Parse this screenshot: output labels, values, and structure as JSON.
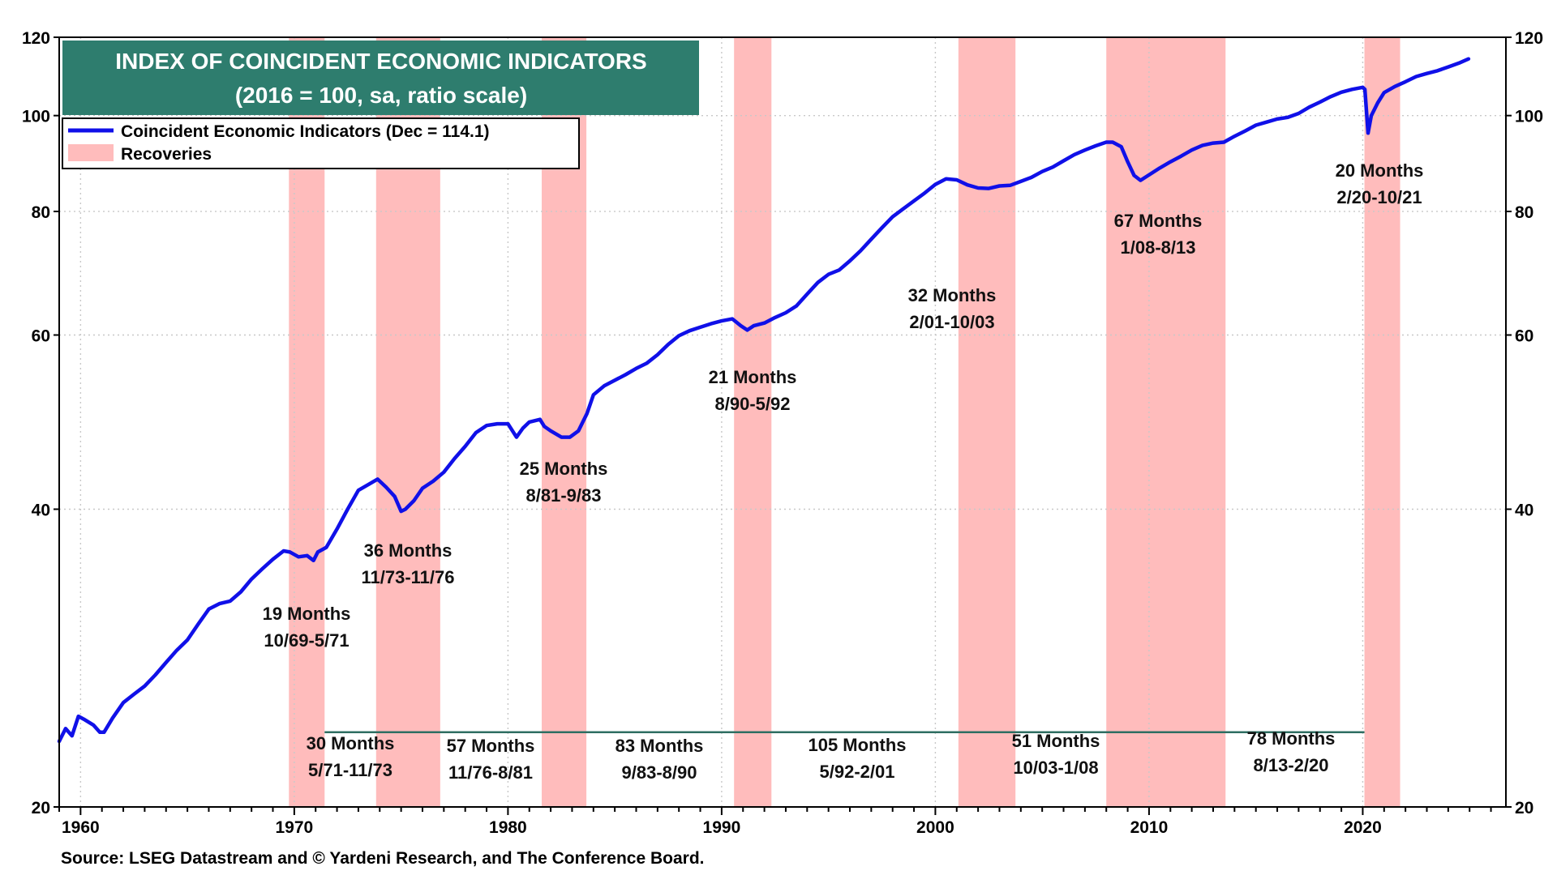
{
  "chart_data": {
    "type": "line",
    "title": "INDEX OF COINCIDENT ECONOMIC INDICATORS",
    "subtitle": "(2016 = 100, sa, ratio scale)",
    "y_scale": "log",
    "ylim": [
      20,
      120
    ],
    "xlim": [
      1959,
      2026.7
    ],
    "y_ticks": [
      20,
      40,
      60,
      80,
      100,
      120
    ],
    "x_ticks": [
      1960,
      1970,
      1980,
      1990,
      2000,
      2010,
      2020
    ],
    "legend": {
      "placement": "top-left",
      "line_label": "Coincident Economic Indicators (Dec = 114.1)",
      "band_label": "Recoveries"
    },
    "colors": {
      "line": "#1010e8",
      "band": "#ffbcbc",
      "title_bg": "#2e7d6e",
      "expansion_line": "#2e6e62",
      "grid": "#c8c8c8"
    },
    "series": [
      {
        "name": "Coincident Economic Indicators",
        "x": [
          1959.0,
          1959.3,
          1959.6,
          1959.9,
          1960.2,
          1960.6,
          1960.9,
          1961.1,
          1961.5,
          1962.0,
          1962.5,
          1963.0,
          1963.5,
          1964.0,
          1964.5,
          1965.0,
          1965.5,
          1966.0,
          1966.5,
          1967.0,
          1967.5,
          1968.0,
          1968.5,
          1969.0,
          1969.5,
          1969.8,
          1970.2,
          1970.6,
          1970.9,
          1971.1,
          1971.5,
          1972.0,
          1972.5,
          1973.0,
          1973.5,
          1973.9,
          1974.3,
          1974.7,
          1975.0,
          1975.2,
          1975.6,
          1976.0,
          1976.5,
          1977.0,
          1977.5,
          1978.0,
          1978.5,
          1979.0,
          1979.5,
          1980.0,
          1980.4,
          1980.7,
          1981.0,
          1981.5,
          1981.7,
          1982.0,
          1982.5,
          1982.9,
          1983.3,
          1983.7,
          1984.0,
          1984.5,
          1985.0,
          1985.5,
          1986.0,
          1986.5,
          1987.0,
          1987.5,
          1988.0,
          1988.5,
          1989.0,
          1989.5,
          1990.0,
          1990.5,
          1990.9,
          1991.2,
          1991.5,
          1992.0,
          1992.5,
          1993.0,
          1993.5,
          1994.0,
          1994.5,
          1995.0,
          1995.5,
          1996.0,
          1996.5,
          1997.0,
          1997.5,
          1998.0,
          1998.5,
          1999.0,
          1999.5,
          2000.0,
          2000.5,
          2001.0,
          2001.5,
          2002.0,
          2002.5,
          2003.0,
          2003.5,
          2004.0,
          2004.5,
          2005.0,
          2005.5,
          2006.0,
          2006.5,
          2007.0,
          2007.5,
          2008.0,
          2008.3,
          2008.7,
          2009.0,
          2009.3,
          2009.6,
          2010.0,
          2010.5,
          2011.0,
          2011.5,
          2012.0,
          2012.5,
          2013.0,
          2013.5,
          2014.0,
          2014.5,
          2015.0,
          2015.5,
          2016.0,
          2016.5,
          2017.0,
          2017.5,
          2018.0,
          2018.5,
          2019.0,
          2019.5,
          2020.0,
          2020.1,
          2020.25,
          2020.4,
          2020.7,
          2021.0,
          2021.5,
          2022.0,
          2022.5,
          2023.0,
          2023.5,
          2024.0,
          2024.5,
          2024.95
        ],
        "values": [
          23.3,
          24.0,
          23.6,
          24.7,
          24.5,
          24.2,
          23.8,
          23.8,
          24.6,
          25.5,
          26.0,
          26.5,
          27.2,
          28.0,
          28.8,
          29.5,
          30.6,
          31.7,
          32.1,
          32.3,
          33.0,
          34.0,
          34.8,
          35.6,
          36.3,
          36.2,
          35.8,
          35.9,
          35.5,
          36.2,
          36.6,
          38.2,
          40.0,
          41.8,
          42.4,
          42.9,
          42.1,
          41.2,
          39.8,
          40.0,
          40.8,
          42.0,
          42.7,
          43.6,
          45.0,
          46.3,
          47.8,
          48.6,
          48.8,
          48.8,
          47.3,
          48.3,
          49.0,
          49.3,
          48.5,
          48.0,
          47.3,
          47.3,
          48.0,
          50.0,
          52.2,
          53.3,
          54.0,
          54.7,
          55.5,
          56.2,
          57.3,
          58.7,
          59.9,
          60.6,
          61.1,
          61.6,
          62.0,
          62.3,
          61.3,
          60.7,
          61.3,
          61.7,
          62.5,
          63.2,
          64.2,
          66.0,
          67.8,
          69.1,
          69.8,
          71.3,
          73.0,
          75.0,
          77.0,
          79.0,
          80.5,
          82.0,
          83.5,
          85.2,
          86.3,
          86.1,
          85.1,
          84.5,
          84.4,
          84.9,
          85.0,
          85.8,
          86.6,
          87.8,
          88.7,
          90.0,
          91.3,
          92.3,
          93.2,
          94.0,
          94.0,
          93.0,
          89.8,
          87.0,
          86.0,
          87.1,
          88.5,
          89.8,
          91.0,
          92.3,
          93.3,
          93.8,
          94.0,
          95.3,
          96.5,
          97.8,
          98.5,
          99.2,
          99.6,
          100.5,
          102.0,
          103.2,
          104.5,
          105.6,
          106.3,
          106.8,
          106.3,
          96.0,
          100.0,
          103.0,
          105.5,
          107.0,
          108.2,
          109.5,
          110.3,
          111.0,
          112.0,
          113.0,
          114.1
        ]
      }
    ],
    "recoveries": [
      {
        "start": 1969.75,
        "end": 1971.42,
        "months_label": "19 Months",
        "range_label": "10/69-5/71"
      },
      {
        "start": 1973.83,
        "end": 1976.83,
        "months_label": "36 Months",
        "range_label": "11/73-11/76"
      },
      {
        "start": 1981.58,
        "end": 1983.67,
        "months_label": "25 Months",
        "range_label": "8/81-9/83"
      },
      {
        "start": 1990.58,
        "end": 1992.33,
        "months_label": "21 Months",
        "range_label": "8/90-5/92"
      },
      {
        "start": 2001.08,
        "end": 2003.75,
        "months_label": "32 Months",
        "range_label": "2/01-10/03"
      },
      {
        "start": 2008.0,
        "end": 2013.58,
        "months_label": "67 Months",
        "range_label": "1/08-8/13"
      },
      {
        "start": 2020.08,
        "end": 2021.75,
        "months_label": "20 Months",
        "range_label": "2/20-10/21"
      }
    ],
    "expansions": [
      {
        "months_label": "30 Months",
        "range_label": "5/71-11/73"
      },
      {
        "months_label": "57 Months",
        "range_label": "11/76-8/81"
      },
      {
        "months_label": "83 Months",
        "range_label": "9/83-8/90"
      },
      {
        "months_label": "105 Months",
        "range_label": "5/92-2/01"
      },
      {
        "months_label": "51 Months",
        "range_label": "10/03-1/08"
      },
      {
        "months_label": "78 Months",
        "range_label": "8/13-2/20"
      }
    ],
    "expansion_line": {
      "start": 1971.42,
      "end": 2020.08,
      "value": 23.8
    }
  },
  "source": "Source: LSEG Datastream and © Yardeni Research, and The Conference Board."
}
